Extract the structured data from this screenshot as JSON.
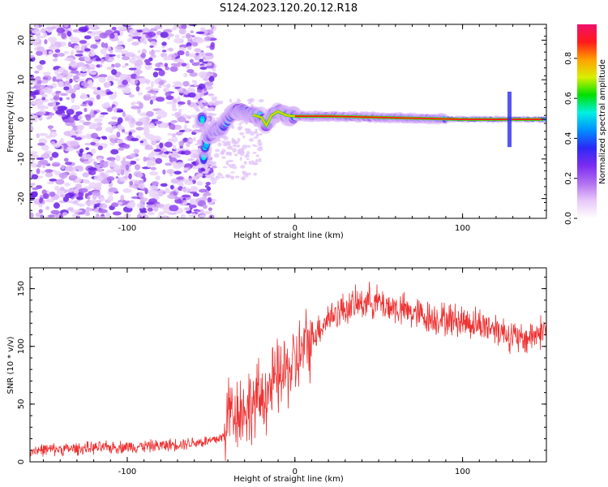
{
  "title": "S124.2023.120.20.12.R18",
  "chart_data": [
    {
      "type": "heatmap",
      "xlabel": "Height of straight line (km)",
      "ylabel": "Frequency (Hz)",
      "xlim": [
        -158,
        150
      ],
      "ylim": [
        -25,
        24
      ],
      "xticks": [
        -100,
        0,
        100
      ],
      "xtick_labels": [
        "-100",
        "0",
        "100"
      ],
      "yticks": [
        -20,
        -10,
        0,
        10,
        20
      ],
      "ytick_labels": [
        "-20",
        "-10",
        "0",
        "10",
        "20"
      ],
      "colorbar": {
        "label": "Normalized spectral amplitude",
        "range": [
          0,
          0.97
        ],
        "ticks": [
          0.0,
          0.2,
          0.4,
          0.6,
          0.8
        ],
        "tick_labels": [
          "0.0",
          "0.2",
          "0.4",
          "0.6",
          "0.8"
        ],
        "colormap": [
          "#ffffff",
          "#e8c8f8",
          "#b070f0",
          "#7a2cf0",
          "#2a2af5",
          "#0090ff",
          "#00f0e0",
          "#00e000",
          "#d8f000",
          "#ffa000",
          "#ff1a1a",
          "#f0106c"
        ]
      },
      "features": {
        "noise_region_x": [
          -158,
          -52
        ],
        "onset_x": -52,
        "signal_trace": [
          {
            "x": -55,
            "y": -11
          },
          {
            "x": -52,
            "y": -4
          },
          {
            "x": -48,
            "y": -3
          },
          {
            "x": -44,
            "y": -2
          },
          {
            "x": -40,
            "y": 0
          },
          {
            "x": -36,
            "y": 2
          },
          {
            "x": -32,
            "y": 2
          },
          {
            "x": -28,
            "y": 1.5
          },
          {
            "x": -24,
            "y": 1
          },
          {
            "x": -20,
            "y": 0.5
          },
          {
            "x": -17,
            "y": -1.5
          },
          {
            "x": -14,
            "y": 1
          },
          {
            "x": -10,
            "y": 2
          },
          {
            "x": -5,
            "y": 1
          },
          {
            "x": 0,
            "y": 0.8
          },
          {
            "x": 20,
            "y": 0.8
          },
          {
            "x": 40,
            "y": 0.6
          },
          {
            "x": 60,
            "y": 0.4
          },
          {
            "x": 80,
            "y": 0.2
          },
          {
            "x": 100,
            "y": 0
          },
          {
            "x": 120,
            "y": 0
          },
          {
            "x": 150,
            "y": 0
          }
        ]
      }
    },
    {
      "type": "line",
      "xlabel": "Height of straight line (km)",
      "ylabel": "SNR (10 * v/v)",
      "xlim": [
        -158,
        150
      ],
      "ylim": [
        0,
        168
      ],
      "xticks": [
        -100,
        0,
        100
      ],
      "xtick_labels": [
        "-100",
        "0",
        "100"
      ],
      "yticks": [
        0,
        50,
        100,
        150
      ],
      "ytick_labels": [
        "0",
        "50",
        "100",
        "150"
      ],
      "color": "#ee3333",
      "trend": [
        {
          "x": -158,
          "y": 10
        },
        {
          "x": -120,
          "y": 12
        },
        {
          "x": -80,
          "y": 14
        },
        {
          "x": -50,
          "y": 18
        },
        {
          "x": -42,
          "y": 22
        },
        {
          "x": -40,
          "y": 45
        },
        {
          "x": -30,
          "y": 45
        },
        {
          "x": -20,
          "y": 55
        },
        {
          "x": -10,
          "y": 72
        },
        {
          "x": 0,
          "y": 85
        },
        {
          "x": 10,
          "y": 108
        },
        {
          "x": 20,
          "y": 125
        },
        {
          "x": 30,
          "y": 133
        },
        {
          "x": 45,
          "y": 140
        },
        {
          "x": 60,
          "y": 133
        },
        {
          "x": 80,
          "y": 125
        },
        {
          "x": 100,
          "y": 122
        },
        {
          "x": 120,
          "y": 116
        },
        {
          "x": 135,
          "y": 105
        },
        {
          "x": 150,
          "y": 115
        }
      ]
    }
  ]
}
